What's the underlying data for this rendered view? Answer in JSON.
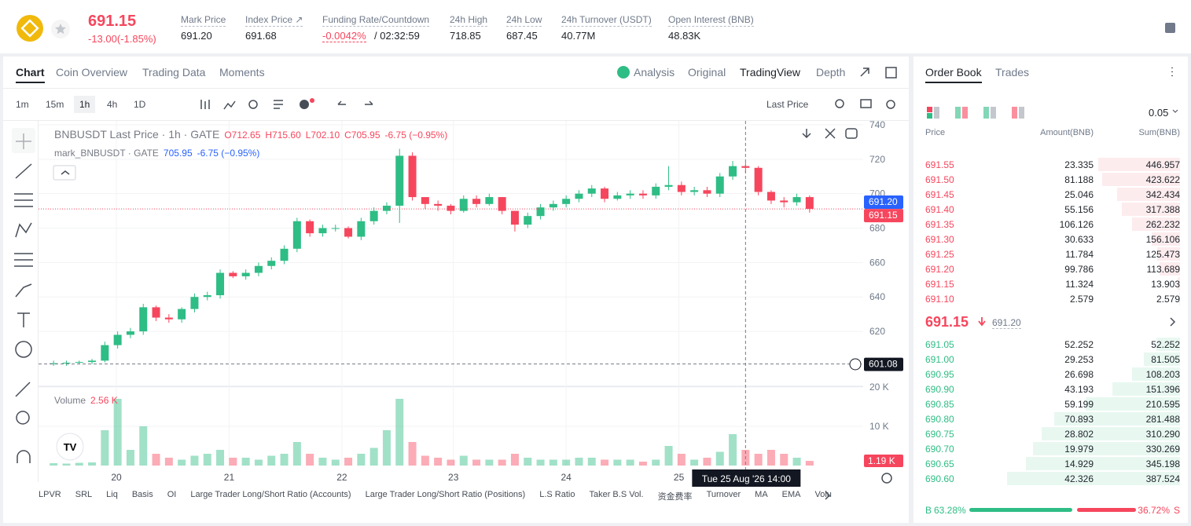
{
  "header": {
    "price": "691.15",
    "change": "-13.00(-1.85%)",
    "stats": [
      {
        "label": "Mark Price",
        "value": "691.20"
      },
      {
        "label": "Index Price ↗",
        "value": "691.68"
      },
      {
        "label": "Funding Rate/Countdown",
        "value": "-0.0042%",
        "extra": "/ 02:32:59"
      },
      {
        "label": "24h High",
        "value": "718.85"
      },
      {
        "label": "24h Low",
        "value": "687.45"
      },
      {
        "label": "24h Turnover (USDT)",
        "value": "40.77M"
      },
      {
        "label": "Open Interest (BNB)",
        "value": "48.83K"
      }
    ]
  },
  "chart_tabs": [
    "Chart",
    "Coin Overview",
    "Trading Data",
    "Moments"
  ],
  "view_tabs": [
    "Analysis",
    "Original",
    "TradingView",
    "Depth"
  ],
  "intervals": [
    "1m",
    "15m",
    "1h",
    "4h",
    "1D"
  ],
  "price_source": "Last Price",
  "indicators": [
    "LPVR",
    "SRL",
    "Liq",
    "Basis",
    "OI",
    "Large Trader Long/Short Ratio (Accounts)",
    "Large Trader Long/Short Ratio (Positions)",
    "L.S Ratio",
    "Taker B.S Vol.",
    "资金费率",
    "Turnover",
    "MA",
    "EMA",
    "Volu"
  ],
  "chart_data": {
    "type": "candlestick",
    "title": "BNBUSDT Last Price · 1h · GATE",
    "legend_ohlc": [
      "O712.65",
      "H715.60",
      "L702.10",
      "C705.95",
      "-6.75 (−0.95%)"
    ],
    "mark_title": "mark_BNBUSDT · GATE",
    "mark_price": "705.95",
    "mark_change": "-6.75 (−0.95%)",
    "up_color": "#2ebd85",
    "down_color": "#f6465d",
    "open": [
      601,
      601.5,
      601.8,
      602.2,
      603,
      612,
      618,
      620,
      634,
      628,
      627,
      633,
      640,
      641,
      654,
      652,
      654,
      658,
      661,
      668,
      684,
      677,
      680,
      680,
      675,
      684,
      690,
      693,
      722,
      698,
      694,
      693,
      690,
      697,
      694,
      698,
      690,
      682,
      687,
      692,
      694,
      697,
      700,
      703,
      697,
      699,
      700,
      699,
      704,
      705,
      701,
      702,
      700,
      710,
      716,
      715,
      701,
      696,
      695,
      698
    ],
    "high": [
      603,
      603,
      603,
      604,
      614,
      620,
      622,
      636,
      635,
      630,
      634,
      642,
      643,
      656,
      655,
      656,
      660,
      663,
      670,
      686,
      685,
      682,
      682,
      681,
      686,
      692,
      695,
      726,
      724,
      698,
      696,
      694,
      699,
      699,
      700,
      698,
      690,
      689,
      694,
      696,
      699,
      702,
      705,
      704,
      701,
      702,
      702,
      706,
      716,
      707,
      704,
      704,
      712,
      719,
      718,
      716,
      702,
      698,
      700,
      699
    ],
    "low": [
      600,
      600,
      601,
      601,
      602,
      610,
      616,
      618,
      626,
      625,
      625,
      631,
      638,
      639,
      651,
      650,
      652,
      656,
      659,
      666,
      675,
      675,
      678,
      674,
      673,
      682,
      688,
      683,
      696,
      691,
      690,
      688,
      689,
      692,
      693,
      688,
      678,
      680,
      685,
      690,
      692,
      695,
      698,
      695,
      696,
      697,
      697,
      697,
      702,
      699,
      699,
      698,
      698,
      708,
      712,
      699,
      694,
      692,
      693,
      689
    ],
    "close": [
      601.5,
      601.8,
      602.2,
      603,
      612,
      618,
      620,
      634,
      628,
      627,
      633,
      640,
      641,
      654,
      652,
      654,
      658,
      661,
      668,
      684,
      677,
      680,
      680,
      675,
      684,
      690,
      693,
      722,
      698,
      694,
      693,
      690,
      697,
      694,
      698,
      690,
      682,
      687,
      692,
      694,
      697,
      700,
      703,
      697,
      699,
      700,
      699,
      704,
      705,
      701,
      702,
      700,
      710,
      716,
      715,
      701,
      696,
      695,
      698,
      691.15
    ],
    "volume": [
      0.6,
      0.5,
      0.7,
      0.8,
      9,
      17,
      4,
      10,
      3,
      2,
      1.5,
      2.5,
      3,
      4,
      2,
      2,
      1.5,
      2.5,
      3,
      6,
      3,
      2,
      1.5,
      2,
      3,
      4.5,
      9,
      17,
      6,
      2.5,
      2,
      1.5,
      2.5,
      1.5,
      1.5,
      1.5,
      3,
      2,
      1.5,
      1.5,
      1.5,
      2,
      2,
      1.5,
      1.5,
      1.5,
      1,
      1.5,
      5,
      3,
      1.5,
      2,
      3.5,
      8,
      4,
      3,
      4,
      3,
      2,
      1.19
    ],
    "ylim": [
      594.5,
      745
    ],
    "yticks": [
      740,
      720,
      700,
      680,
      660,
      640,
      620
    ],
    "volume_label": "Volume",
    "volume_value": "2.56 K",
    "volume_ylim": [
      0,
      20
    ],
    "volume_ticks": [
      {
        "value": 20,
        "label": "20 K"
      },
      {
        "value": 10,
        "label": "10 K"
      }
    ],
    "volume_tag": {
      "value": 1.19,
      "label": "1.19 K"
    },
    "price_tags": [
      {
        "value": 691.2,
        "label": "691.20",
        "color": "#2962ff"
      },
      {
        "value": 691.15,
        "label": "691.15",
        "color": "#f6465d"
      },
      {
        "value": 601.08,
        "label": "601.08",
        "color": "#131722"
      }
    ],
    "xticks": [
      {
        "value": 4.9,
        "label": "20"
      },
      {
        "value": 13.7,
        "label": "21"
      },
      {
        "value": 22.5,
        "label": "22"
      },
      {
        "value": 31.2,
        "label": "23"
      },
      {
        "value": 40,
        "label": "24"
      },
      {
        "value": 48.8,
        "label": "25"
      }
    ],
    "crosshair": {
      "x": 54,
      "label": "Tue 25 Aug '26 14:00"
    },
    "grid": true
  },
  "order_book": {
    "tabs": [
      "Order Book",
      "Trades"
    ],
    "tick_size": "0.05",
    "headers": [
      "Price",
      "Amount(BNB)",
      "Sum(BNB)"
    ],
    "asks": [
      [
        "691.55",
        "23.335",
        "446.957"
      ],
      [
        "691.50",
        "81.188",
        "423.622"
      ],
      [
        "691.45",
        "25.046",
        "342.434"
      ],
      [
        "691.40",
        "55.156",
        "317.388"
      ],
      [
        "691.35",
        "106.126",
        "262.232"
      ],
      [
        "691.30",
        "30.633",
        "156.106"
      ],
      [
        "691.25",
        "11.784",
        "125.473"
      ],
      [
        "691.20",
        "99.786",
        "113.689"
      ],
      [
        "691.15",
        "11.324",
        "13.903"
      ],
      [
        "691.10",
        "2.579",
        "2.579"
      ]
    ],
    "last_price": "691.15",
    "mark_price": "691.20",
    "bids": [
      [
        "691.05",
        "52.252",
        "52.252"
      ],
      [
        "691.00",
        "29.253",
        "81.505"
      ],
      [
        "690.95",
        "26.698",
        "108.203"
      ],
      [
        "690.90",
        "43.193",
        "151.396"
      ],
      [
        "690.85",
        "59.199",
        "210.595"
      ],
      [
        "690.80",
        "70.893",
        "281.488"
      ],
      [
        "690.75",
        "28.802",
        "310.290"
      ],
      [
        "690.70",
        "19.979",
        "330.269"
      ],
      [
        "690.65",
        "14.929",
        "345.198"
      ],
      [
        "690.60",
        "42.326",
        "387.524"
      ]
    ],
    "buy_label": "B",
    "buy_ratio": "63.28%",
    "sell_ratio": "36.72%",
    "sell_label": "S"
  }
}
